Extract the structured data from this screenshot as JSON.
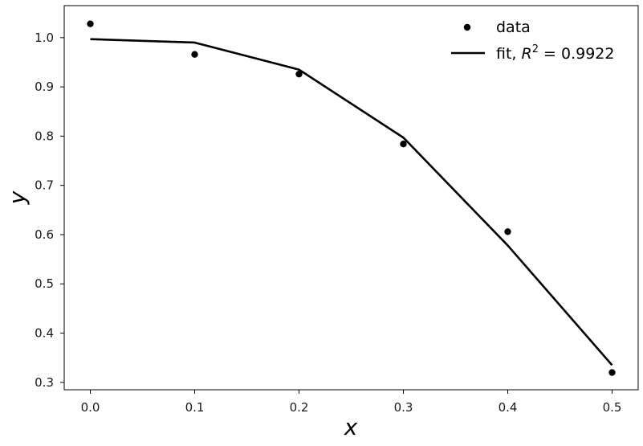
{
  "chart_data": {
    "type": "scatter",
    "title": "",
    "xlabel": "x",
    "ylabel": "y",
    "xlim": [
      -0.025,
      0.525
    ],
    "ylim": [
      0.285,
      1.065
    ],
    "xticks": [
      "0.0",
      "0.1",
      "0.2",
      "0.3",
      "0.4",
      "0.5"
    ],
    "yticks": [
      "0.3",
      "0.4",
      "0.5",
      "0.6",
      "0.7",
      "0.8",
      "0.9",
      "1.0"
    ],
    "grid": false,
    "legend_position": "top-right",
    "series": [
      {
        "name": "data",
        "kind": "scatter",
        "color": "#000000",
        "x": [
          0.0,
          0.1,
          0.2,
          0.3,
          0.4,
          0.5
        ],
        "y": [
          1.028,
          0.966,
          0.926,
          0.784,
          0.606,
          0.32
        ]
      },
      {
        "name": "fit, R² = 0.9922",
        "name_prefix": "fit, ",
        "name_r": "R",
        "name_sup": "2",
        "name_suffix": " =  0.9922",
        "kind": "line",
        "color": "#000000",
        "x": [
          0.0,
          0.1,
          0.2,
          0.3,
          0.4,
          0.5
        ],
        "y": [
          0.997,
          0.99,
          0.935,
          0.797,
          0.578,
          0.335
        ]
      }
    ]
  }
}
